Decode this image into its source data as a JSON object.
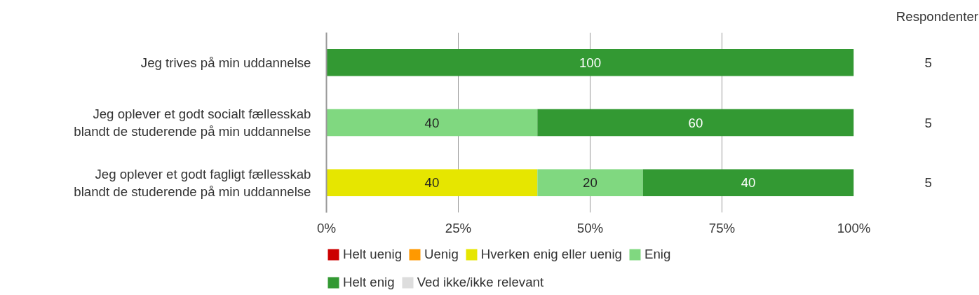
{
  "chart_data": {
    "type": "bar",
    "orientation": "horizontal",
    "stacked": true,
    "categories": [
      "Jeg trives på min uddannelse",
      "Jeg oplever et godt socialt fællesskab\nblandt de studerende på min uddannelse",
      "Jeg oplever et godt fagligt fællesskab\nblandt de studerende på min uddannelse"
    ],
    "series": [
      {
        "name": "Helt uenig",
        "color": "#cc0000",
        "values": [
          0,
          0,
          0
        ],
        "value_labels": [
          null,
          null,
          null
        ]
      },
      {
        "name": "Uenig",
        "color": "#ff9900",
        "values": [
          0,
          0,
          0
        ],
        "value_labels": [
          null,
          null,
          null
        ]
      },
      {
        "name": "Hverken enig eller uenig",
        "color": "#e6e600",
        "values": [
          0,
          0,
          40
        ],
        "value_labels": [
          null,
          null,
          "40"
        ]
      },
      {
        "name": "Enig",
        "color": "#80d880",
        "values": [
          0,
          40,
          20
        ],
        "value_labels": [
          null,
          "40",
          "20"
        ]
      },
      {
        "name": "Helt enig",
        "color": "#339933",
        "values": [
          100,
          60,
          40
        ],
        "value_labels": [
          "100",
          "60",
          "40"
        ]
      },
      {
        "name": "Ved ikke/ikke relevant",
        "color": "#dddddd",
        "values": [
          0,
          0,
          0
        ],
        "value_labels": [
          null,
          null,
          null
        ]
      }
    ],
    "xlim": [
      0,
      100
    ],
    "xticks": [
      {
        "value": 0,
        "label": "0%"
      },
      {
        "value": 25,
        "label": "25%"
      },
      {
        "value": 50,
        "label": "50%"
      },
      {
        "value": 75,
        "label": "75%"
      },
      {
        "value": 100,
        "label": "100%"
      }
    ],
    "grid": "x",
    "legend": "bottom",
    "annotations": [
      "Respondenter",
      "5",
      "5",
      "5"
    ]
  }
}
